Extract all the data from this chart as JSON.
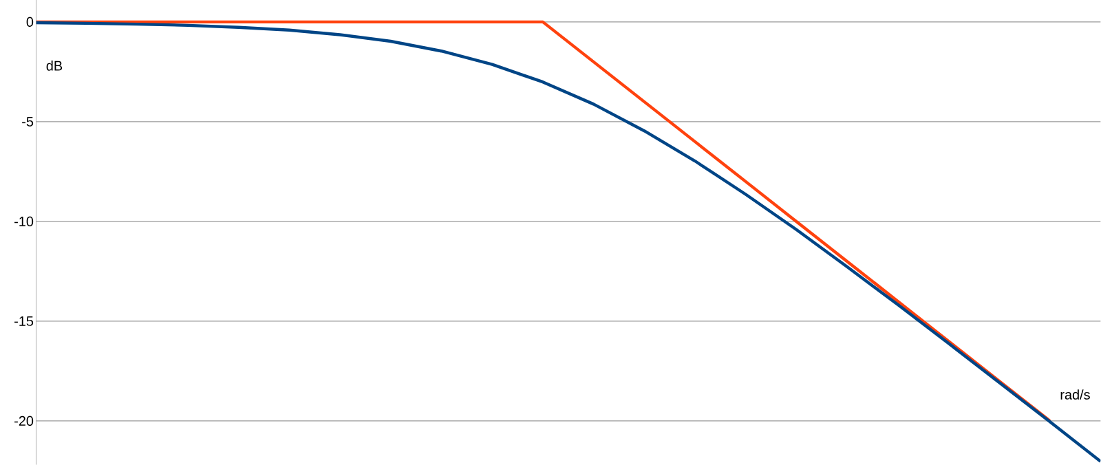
{
  "chart_data": {
    "type": "line",
    "xlabel": "rad/s",
    "ylabel": "dB",
    "ylim": [
      -22.2,
      1.1
    ],
    "categories": [
      null,
      null,
      null,
      null,
      null,
      null,
      null,
      null,
      null,
      null,
      null,
      null,
      null,
      null,
      null,
      null,
      null,
      null,
      null,
      null,
      null,
      null
    ],
    "yticks": [
      0,
      -5,
      -10,
      -15,
      -20
    ],
    "tick_labels": "y",
    "grid": "y",
    "marker": "none",
    "line_style": "solid",
    "series": [
      {
        "color": "#ff420e",
        "values": [
          0,
          0,
          0,
          0,
          0,
          0,
          0,
          0,
          0,
          0,
          0,
          -2,
          -4,
          -6,
          -8,
          -10,
          -12,
          -14,
          -16,
          -18,
          -20,
          null
        ]
      },
      {
        "color": "#004586",
        "values": [
          -0.04,
          -0.07,
          -0.11,
          -0.17,
          -0.27,
          -0.41,
          -0.64,
          -0.97,
          -1.46,
          -2.13,
          -3.01,
          -4.12,
          -5.46,
          -6.97,
          -8.64,
          -10.41,
          -12.27,
          -14.17,
          -16.11,
          -18.07,
          -20.04,
          -22.03
        ]
      }
    ]
  }
}
